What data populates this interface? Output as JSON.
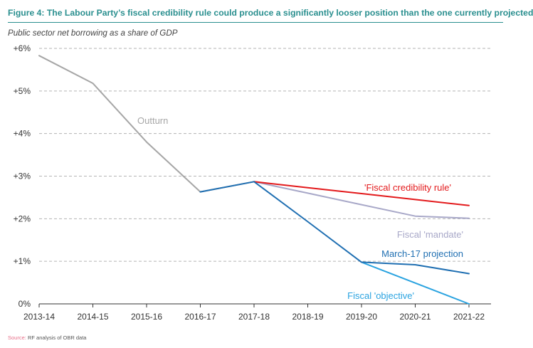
{
  "header": {
    "title": "Figure 4: The Labour Party’s fiscal credibility rule could produce a significantly looser position than the one currently projected",
    "subtitle": "Public sector net borrowing as a share of GDP"
  },
  "footer": {
    "source_label": "Source:",
    "source_text": " RF analysis of OBR data"
  },
  "chart_data": {
    "type": "line",
    "categories": [
      "2013-14",
      "2014-15",
      "2015-16",
      "2016-17",
      "2017-18",
      "2018-19",
      "2019-20",
      "2020-21",
      "2021-22"
    ],
    "ylim": [
      0,
      6
    ],
    "yticks": [
      {
        "value": 0,
        "label": "0%"
      },
      {
        "value": 1,
        "label": "+1%"
      },
      {
        "value": 2,
        "label": "+2%"
      },
      {
        "value": 3,
        "label": "+3%"
      },
      {
        "value": 4,
        "label": "+4%"
      },
      {
        "value": 5,
        "label": "+5%"
      },
      {
        "value": 6,
        "label": "+6%"
      }
    ],
    "grid": true,
    "series": [
      {
        "name": "Outturn",
        "color": "#a6a6a6",
        "points": [
          [
            0,
            5.83
          ],
          [
            1,
            5.18
          ],
          [
            2,
            3.8
          ],
          [
            3,
            2.63
          ],
          [
            4,
            2.87
          ]
        ]
      },
      {
        "name": "Fiscal 'mandate'",
        "color": "#a8a8c8",
        "points": [
          [
            4,
            2.87
          ],
          [
            5,
            2.6
          ],
          [
            6,
            2.33
          ],
          [
            7,
            2.06
          ],
          [
            8,
            2.01
          ]
        ]
      },
      {
        "name": "'Fiscal credibility rule'",
        "color": "#e31a1c",
        "points": [
          [
            4,
            2.87
          ],
          [
            5,
            2.73
          ],
          [
            6,
            2.59
          ],
          [
            7,
            2.45
          ],
          [
            8,
            2.31
          ]
        ]
      },
      {
        "name": "Fiscal 'objective'",
        "color": "#2aa3e0",
        "points": [
          [
            6,
            0.98
          ],
          [
            7,
            0.49
          ],
          [
            8,
            0.0
          ]
        ]
      },
      {
        "name": "March-17 projection",
        "color": "#1f6fb2",
        "points": [
          [
            3,
            2.63
          ],
          [
            4,
            2.87
          ],
          [
            5,
            1.93
          ],
          [
            6,
            0.98
          ],
          [
            7,
            0.92
          ],
          [
            8,
            0.71
          ]
        ]
      }
    ],
    "annotations": [
      {
        "series": "Outturn",
        "text": "Outturn"
      },
      {
        "series": "'Fiscal credibility rule'",
        "text": "'Fiscal credibility rule'"
      },
      {
        "series": "Fiscal 'mandate'",
        "text": "Fiscal 'mandate'"
      },
      {
        "series": "March-17 projection",
        "text": "March-17 projection"
      },
      {
        "series": "Fiscal 'objective'",
        "text": "Fiscal 'objective'"
      }
    ]
  }
}
